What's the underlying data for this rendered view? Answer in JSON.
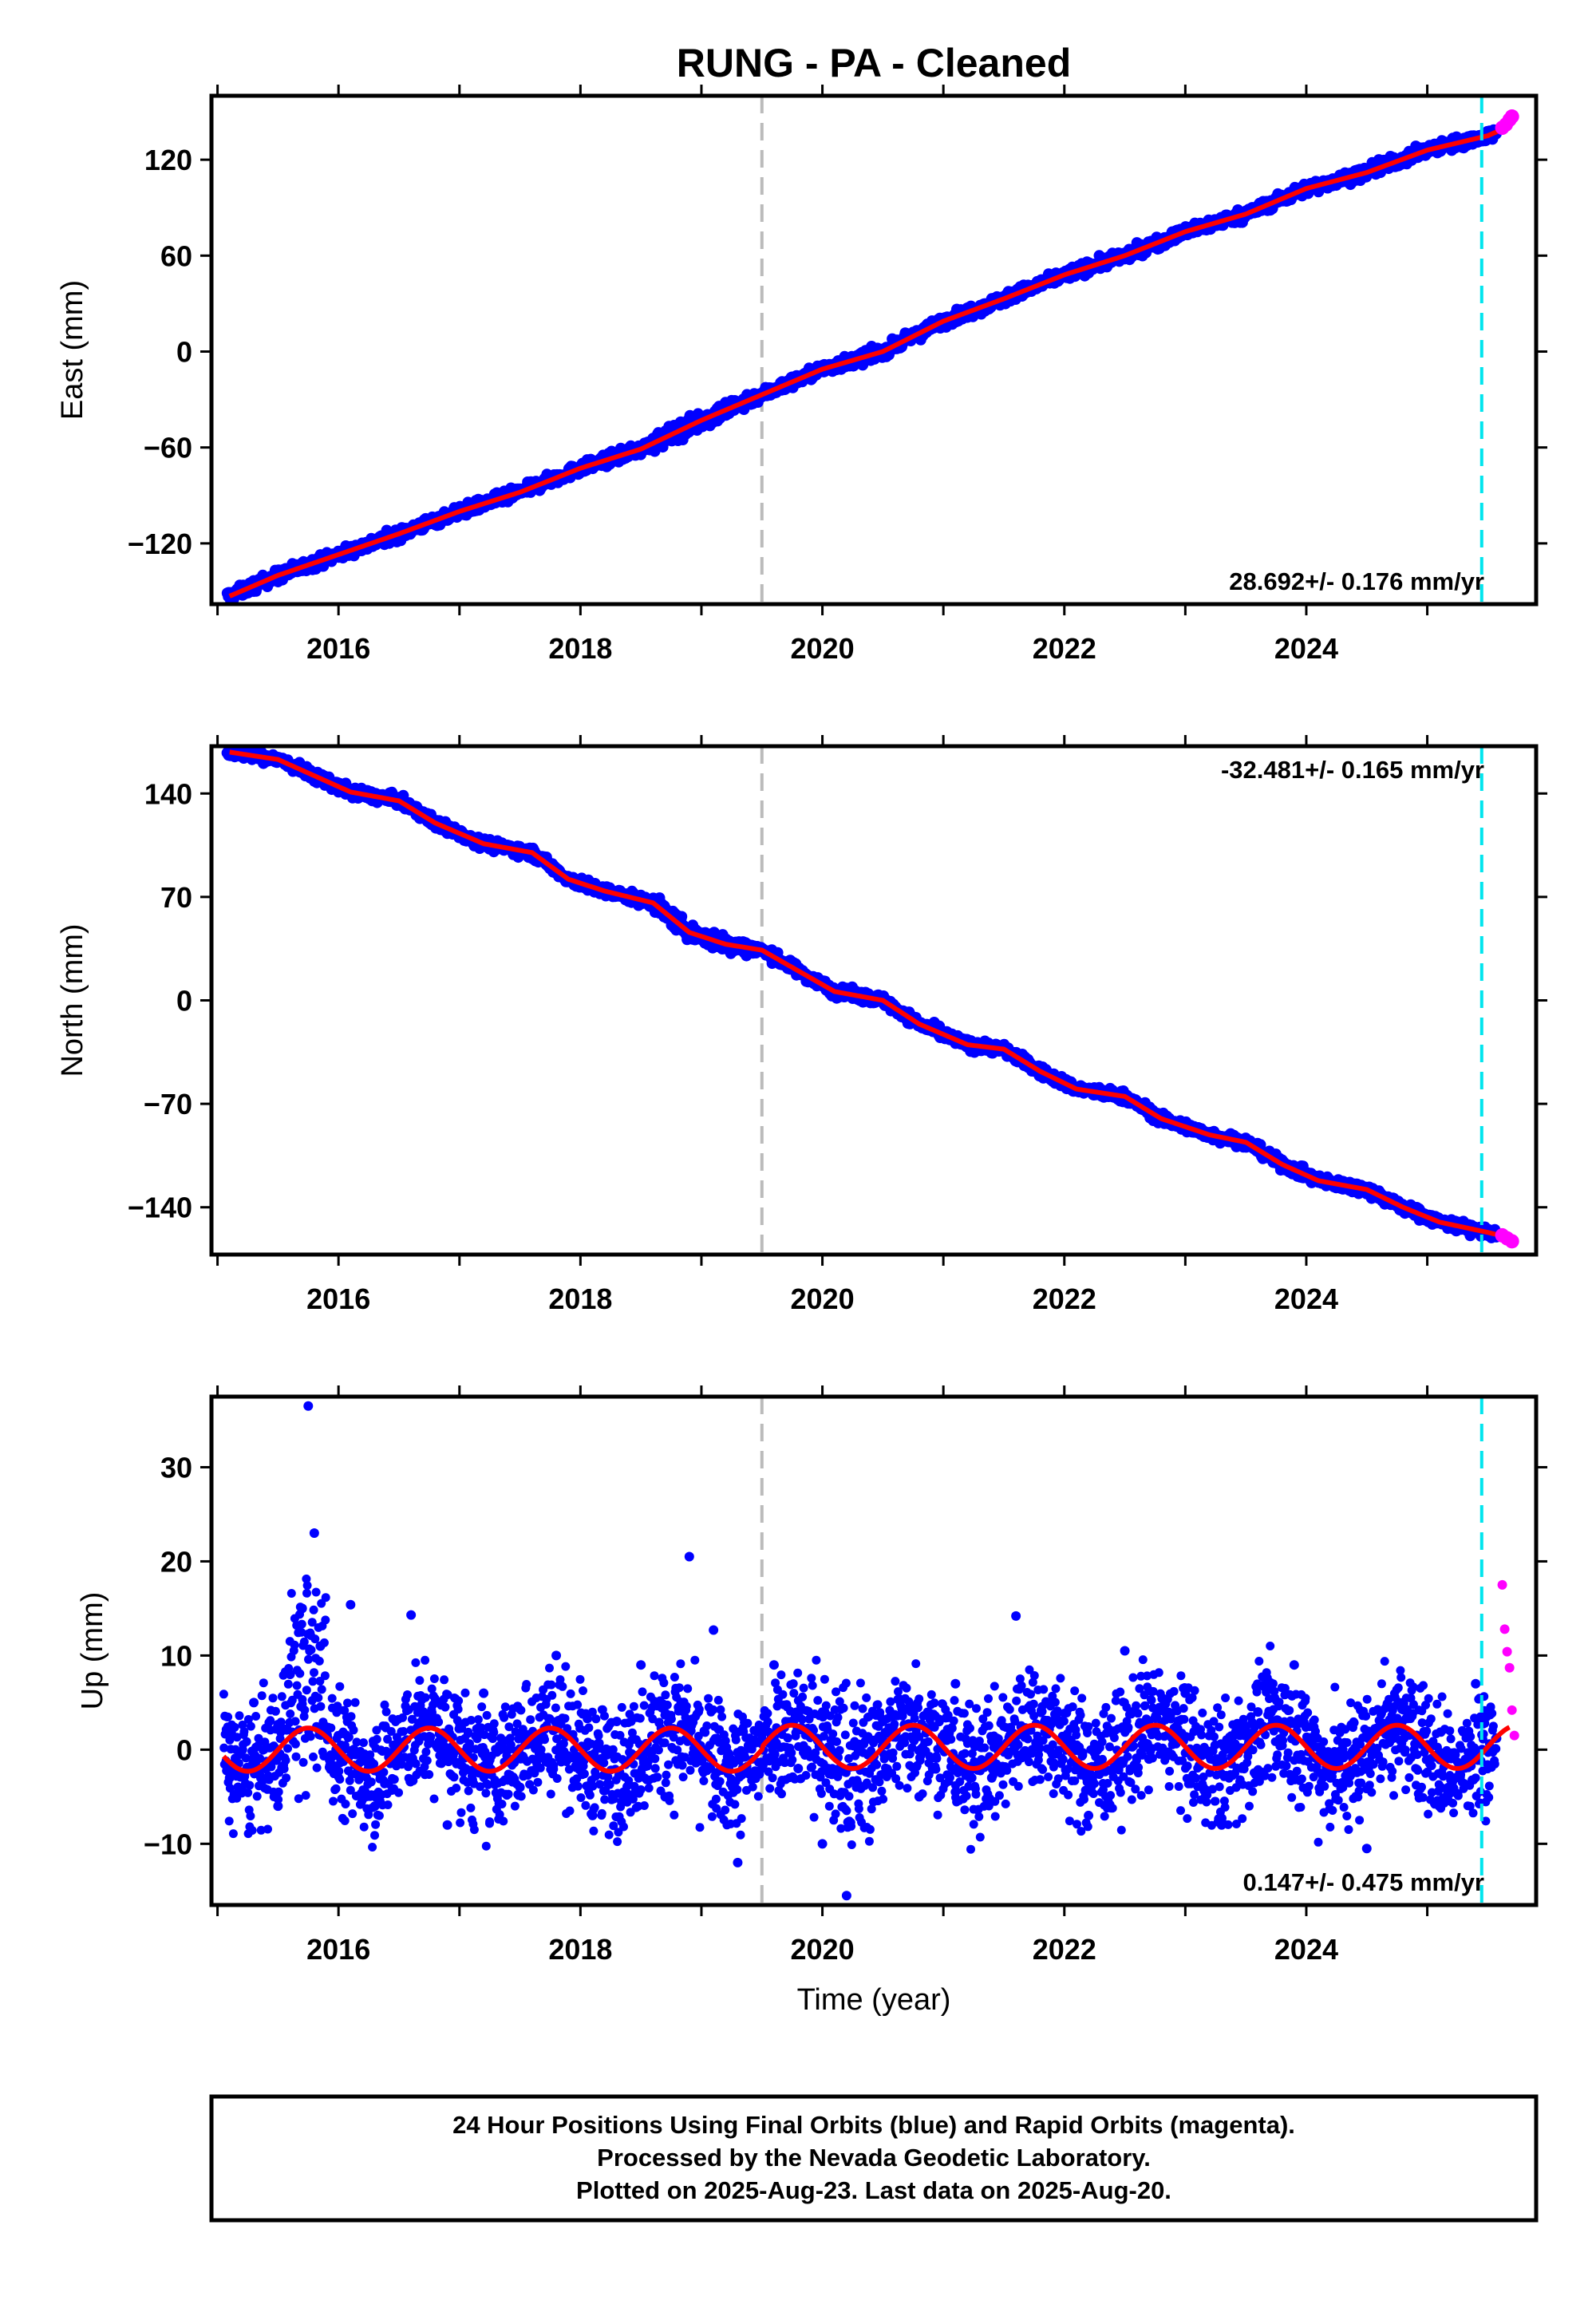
{
  "figure": {
    "title": "RUNG  - PA - Cleaned",
    "footnote": [
      "24 Hour Positions Using Final Orbits (blue) and Rapid Orbits (magenta).",
      "Processed by the Nevada Geodetic Laboratory.",
      "Plotted on 2025-Aug-23. Last data on 2025-Aug-20."
    ]
  },
  "chart_data": [
    {
      "type": "scatter",
      "ylabel": "East (mm)",
      "xlabel": "",
      "xlim": [
        2014.95,
        2025.9
      ],
      "ylim": [
        -158,
        160
      ],
      "x_ticks": [
        2016,
        2018,
        2020,
        2022,
        2024
      ],
      "y_ticks": [
        -120,
        -60,
        0,
        60,
        120
      ],
      "rate_label": "28.692+/- 0.176 mm/yr",
      "rate_position": "bottom-right",
      "colors": {
        "final": "#0000ff",
        "rapid": "#ff00ff",
        "model": "#ff0000",
        "event": "#bbbbbb",
        "cutoff": "#00e5ee"
      },
      "event_line_x": 2019.5,
      "cutoff_line_x": 2025.45,
      "model": {
        "x": [
          2015.1,
          2015.5,
          2016.0,
          2016.5,
          2017.0,
          2017.5,
          2018.0,
          2018.5,
          2019.0,
          2019.5,
          2020.0,
          2020.5,
          2021.0,
          2021.5,
          2022.0,
          2022.5,
          2023.0,
          2023.5,
          2024.0,
          2024.5,
          2025.0,
          2025.5,
          2025.65
        ],
        "y": [
          -153,
          -140,
          -127,
          -114,
          -100,
          -88,
          -73,
          -61,
          -43,
          -27,
          -11,
          0,
          19,
          33,
          48,
          60,
          75,
          86,
          102,
          112,
          126,
          135,
          140
        ]
      },
      "final_points": {
        "x": [
          2015.1,
          2015.3,
          2015.5,
          2015.7,
          2015.9,
          2016.2,
          2016.5,
          2016.8,
          2017.1,
          2017.4,
          2017.7,
          2018.0,
          2018.3,
          2018.6,
          2018.9,
          2019.2,
          2019.5,
          2019.8,
          2020.1,
          2020.4,
          2020.7,
          2021.0,
          2021.3,
          2021.6,
          2021.9,
          2022.2,
          2022.5,
          2022.8,
          2023.1,
          2023.4,
          2023.7,
          2024.0,
          2024.3,
          2024.6,
          2024.9,
          2025.2,
          2025.5
        ],
        "y": [
          -153,
          -150,
          -144,
          -137,
          -131,
          -124,
          -117,
          -108,
          -100,
          -94,
          -82,
          -73,
          -67,
          -57,
          -45,
          -39,
          -27,
          -16,
          -10,
          -3,
          8,
          19,
          24,
          34,
          44,
          50,
          58,
          68,
          75,
          81,
          94,
          102,
          108,
          120,
          126,
          132,
          137
        ]
      },
      "rapid_points": {
        "x": [
          2025.62,
          2025.65,
          2025.68,
          2025.7
        ],
        "y": [
          140,
          142,
          145,
          147
        ]
      }
    },
    {
      "type": "scatter",
      "ylabel": "North (mm)",
      "xlabel": "",
      "xlim": [
        2014.95,
        2025.9
      ],
      "ylim": [
        -172,
        172
      ],
      "x_ticks": [
        2016,
        2018,
        2020,
        2022,
        2024
      ],
      "y_ticks": [
        -140,
        -70,
        0,
        70,
        140
      ],
      "rate_label": "-32.481+/- 0.165 mm/yr",
      "rate_position": "top-right",
      "colors": {
        "final": "#0000ff",
        "rapid": "#ff00ff",
        "model": "#ff0000",
        "event": "#bbbbbb",
        "cutoff": "#00e5ee"
      },
      "event_line_x": 2019.5,
      "cutoff_line_x": 2025.45,
      "model": {
        "x": [
          2015.1,
          2015.5,
          2015.8,
          2016.1,
          2016.5,
          2016.8,
          2017.2,
          2017.6,
          2017.9,
          2018.2,
          2018.6,
          2018.9,
          2019.2,
          2019.5,
          2019.8,
          2020.1,
          2020.5,
          2020.8,
          2021.2,
          2021.5,
          2021.8,
          2022.1,
          2022.5,
          2022.8,
          2023.2,
          2023.5,
          2023.8,
          2024.1,
          2024.5,
          2024.8,
          2025.1,
          2025.5,
          2025.65
        ],
        "y": [
          168,
          163,
          152,
          141,
          135,
          120,
          106,
          100,
          82,
          74,
          66,
          46,
          38,
          34,
          20,
          6,
          0,
          -16,
          -30,
          -33,
          -48,
          -60,
          -65,
          -80,
          -91,
          -96,
          -111,
          -122,
          -128,
          -140,
          -150,
          -157,
          -160
        ]
      },
      "final_points": {
        "x": [
          2015.1,
          2015.4,
          2015.7,
          2016.0,
          2016.3,
          2016.6,
          2016.9,
          2017.2,
          2017.5,
          2017.8,
          2018.1,
          2018.4,
          2018.7,
          2019.0,
          2019.3,
          2019.6,
          2019.9,
          2020.2,
          2020.5,
          2020.8,
          2021.1,
          2021.4,
          2021.7,
          2022.0,
          2022.3,
          2022.6,
          2022.9,
          2023.2,
          2023.5,
          2023.8,
          2024.1,
          2024.4,
          2024.7,
          2025.0,
          2025.3,
          2025.5
        ],
        "y": [
          167,
          163,
          154,
          141,
          136,
          130,
          113,
          105,
          101,
          86,
          75,
          70,
          58,
          43,
          37,
          31,
          15,
          5,
          0,
          -16,
          -26,
          -32,
          -40,
          -58,
          -63,
          -69,
          -83,
          -91,
          -96,
          -108,
          -122,
          -127,
          -136,
          -148,
          -154,
          -157
        ]
      },
      "rapid_points": {
        "x": [
          2025.62,
          2025.66,
          2025.7
        ],
        "y": [
          -159,
          -161,
          -163
        ]
      }
    },
    {
      "type": "scatter",
      "ylabel": "Up (mm)",
      "xlabel": "Time (year)",
      "xlim": [
        2014.95,
        2025.9
      ],
      "ylim": [
        -16.5,
        37.5
      ],
      "x_ticks": [
        2016,
        2018,
        2020,
        2022,
        2024
      ],
      "y_ticks": [
        -10,
        0,
        10,
        20,
        30
      ],
      "rate_label": "0.147+/- 0.475 mm/yr",
      "rate_position": "bottom-right",
      "colors": {
        "final": "#0000ff",
        "rapid": "#ff00ff",
        "model": "#ff0000",
        "event": "#bbbbbb",
        "cutoff": "#00e5ee"
      },
      "event_line_x": 2019.5,
      "cutoff_line_x": 2025.45,
      "model": {
        "type": "seasonal",
        "amplitude": 2.3,
        "phase_peak": 0.75,
        "x_start": 2015.05,
        "x_end": 2025.68,
        "offset_step_at": 2019.5
      },
      "final_points": {
        "x": [
          2015.1,
          2015.3,
          2015.5,
          2015.6,
          2015.7,
          2015.75,
          2015.8,
          2015.85,
          2016.1,
          2016.3,
          2016.6,
          2016.7,
          2016.9,
          2017.2,
          2017.5,
          2017.8,
          2018.1,
          2018.3,
          2018.5,
          2018.7,
          2018.9,
          2019.1,
          2019.3,
          2019.6,
          2019.8,
          2020.0,
          2020.2,
          2020.5,
          2020.8,
          2021.1,
          2021.4,
          2021.6,
          2021.9,
          2022.2,
          2022.5,
          2022.7,
          2023.0,
          2023.3,
          2023.6,
          2023.9,
          2024.2,
          2024.5,
          2024.8,
          2025.1,
          2025.4
        ],
        "y": [
          -3,
          5,
          -6,
          8,
          15,
          36.5,
          23,
          11,
          15.4,
          -6,
          14.3,
          4,
          -8,
          6,
          -4,
          10,
          -7,
          3,
          9,
          -5,
          20.5,
          12.7,
          -12,
          9,
          -2,
          -10,
          -15.5,
          3,
          -5,
          7,
          -3,
          14.2,
          3,
          -7,
          10.5,
          -1,
          6,
          -8,
          4,
          9,
          -3,
          -10.5,
          5,
          -6,
          7
        ]
      },
      "rapid_points": {
        "x": [
          2025.62,
          2025.64,
          2025.66,
          2025.68,
          2025.7,
          2025.72
        ],
        "y": [
          17.5,
          12.8,
          10.4,
          8.7,
          4.2,
          1.5
        ]
      }
    }
  ]
}
